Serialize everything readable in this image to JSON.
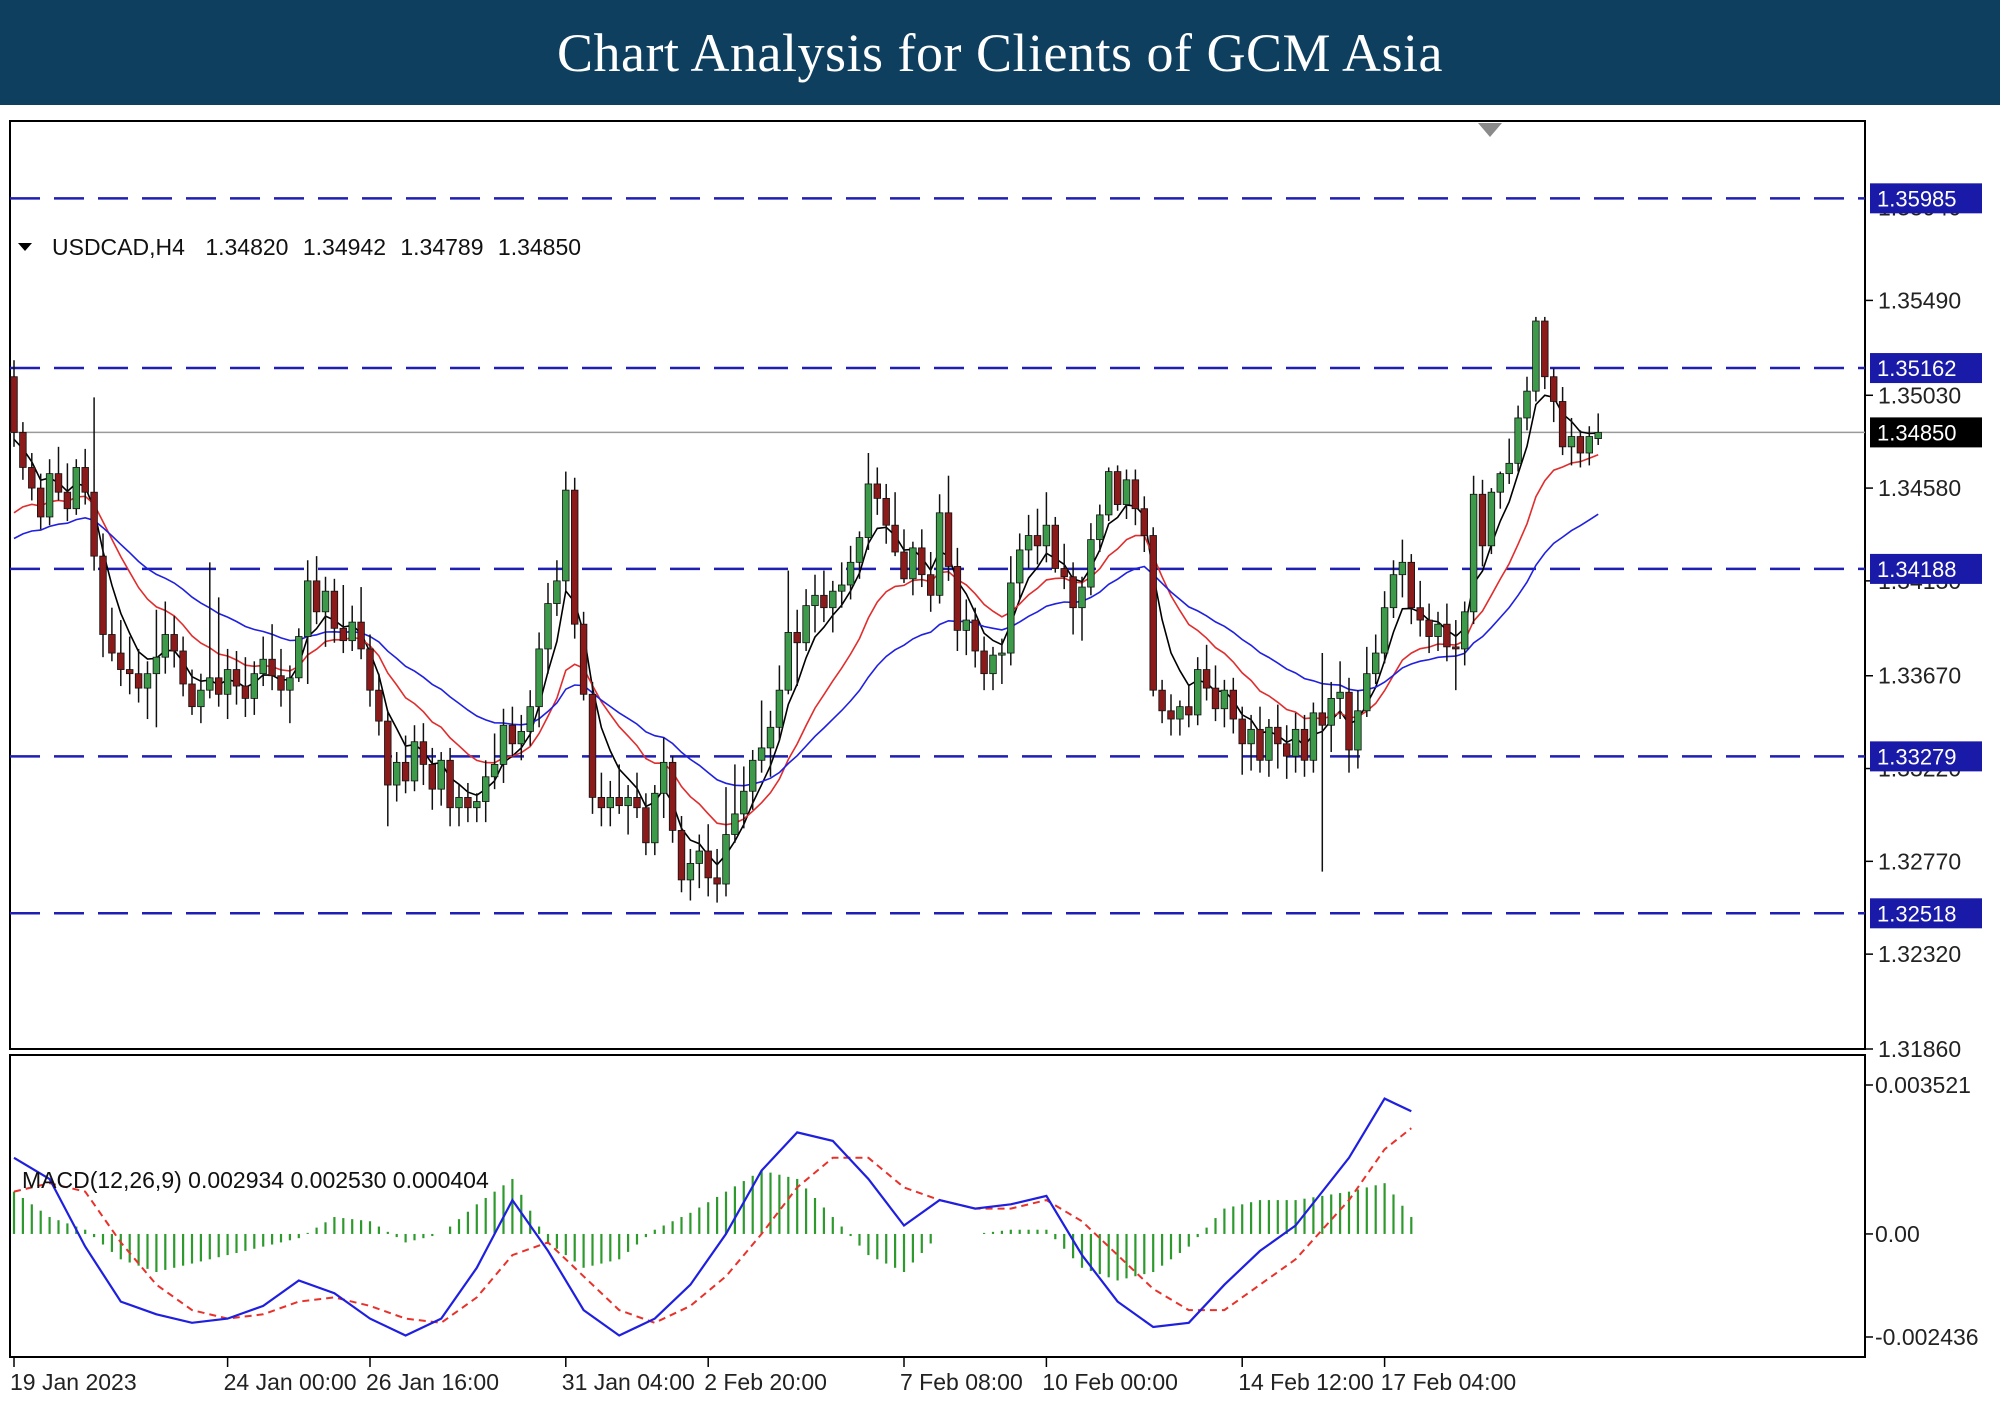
{
  "header": {
    "title": "Chart Analysis for Clients of GCM Asia"
  },
  "chart_data": {
    "type": "candlestick",
    "symbol_info": {
      "symbol": "USDCAD,H4",
      "open": "1.34820",
      "high": "1.34942",
      "low": "1.34789",
      "close": "1.34850"
    },
    "price_axis": {
      "ylim": [
        1.3186,
        1.3636
      ],
      "tick_labels": [
        "1.35490",
        "1.35030",
        "1.34580",
        "1.34130",
        "1.33670",
        "1.33220",
        "1.32770",
        "1.32320",
        "1.31860"
      ],
      "tick_values": [
        1.3549,
        1.3503,
        1.3458,
        1.3413,
        1.3367,
        1.3322,
        1.3277,
        1.3232,
        1.3186
      ],
      "partial_tick_labels": [
        "1.35940"
      ],
      "partial_tick_values": [
        1.3594
      ]
    },
    "x_axis": {
      "tick_labels": [
        "19 Jan 2023",
        "24 Jan 00:00",
        "26 Jan 16:00",
        "31 Jan 04:00",
        "2 Feb 20:00",
        "7 Feb 08:00",
        "10 Feb 00:00",
        "14 Feb 12:00",
        "17 Feb 04:00"
      ],
      "tick_bar_index": [
        0,
        24,
        40,
        62,
        78,
        100,
        116,
        138,
        154
      ]
    },
    "horizontal_levels": {
      "values": [
        1.35985,
        1.35162,
        1.34188,
        1.33279,
        1.32518
      ],
      "labels": [
        "1.35985",
        "1.35162",
        "1.34188",
        "1.33279",
        "1.32518"
      ],
      "style": "dashed",
      "color": "#1f1fb4"
    },
    "current_price": {
      "value": 1.3485,
      "label": "1.34850"
    },
    "candles": [
      [
        1.3512,
        1.352,
        1.3478,
        1.3485
      ],
      [
        1.3485,
        1.349,
        1.3462,
        1.3468
      ],
      [
        1.3468,
        1.3475,
        1.3452,
        1.3458
      ],
      [
        1.3458,
        1.3465,
        1.3438,
        1.3444
      ],
      [
        1.3444,
        1.3472,
        1.344,
        1.3465
      ],
      [
        1.3465,
        1.3478,
        1.3452,
        1.3456
      ],
      [
        1.3456,
        1.347,
        1.3442,
        1.3448
      ],
      [
        1.3448,
        1.3472,
        1.3445,
        1.3468
      ],
      [
        1.3468,
        1.3477,
        1.345,
        1.3456
      ],
      [
        1.3456,
        1.3502,
        1.3418,
        1.3425
      ],
      [
        1.3425,
        1.3436,
        1.3376,
        1.3387
      ],
      [
        1.3387,
        1.34,
        1.3374,
        1.3378
      ],
      [
        1.3378,
        1.3394,
        1.3362,
        1.337
      ],
      [
        1.337,
        1.3386,
        1.3358,
        1.3368
      ],
      [
        1.3368,
        1.338,
        1.3354,
        1.3361
      ],
      [
        1.3361,
        1.3374,
        1.3346,
        1.3368
      ],
      [
        1.3368,
        1.3399,
        1.3342,
        1.3376
      ],
      [
        1.3376,
        1.3403,
        1.3368,
        1.3387
      ],
      [
        1.3387,
        1.3396,
        1.3371,
        1.3379
      ],
      [
        1.3379,
        1.3386,
        1.3357,
        1.3363
      ],
      [
        1.3363,
        1.337,
        1.3348,
        1.3352
      ],
      [
        1.3352,
        1.3368,
        1.3344,
        1.336
      ],
      [
        1.336,
        1.3422,
        1.3356,
        1.3366
      ],
      [
        1.3366,
        1.3405,
        1.3352,
        1.3358
      ],
      [
        1.3358,
        1.338,
        1.3346,
        1.337
      ],
      [
        1.337,
        1.3379,
        1.3353,
        1.3362
      ],
      [
        1.3362,
        1.3376,
        1.3347,
        1.3356
      ],
      [
        1.3356,
        1.3374,
        1.3348,
        1.3368
      ],
      [
        1.3368,
        1.3386,
        1.3362,
        1.3375
      ],
      [
        1.3375,
        1.3392,
        1.336,
        1.3367
      ],
      [
        1.3367,
        1.338,
        1.3352,
        1.336
      ],
      [
        1.336,
        1.3372,
        1.3344,
        1.3366
      ],
      [
        1.3366,
        1.339,
        1.3364,
        1.3386
      ],
      [
        1.3386,
        1.3423,
        1.3363,
        1.3413
      ],
      [
        1.3413,
        1.3425,
        1.3392,
        1.3398
      ],
      [
        1.3398,
        1.3415,
        1.3381,
        1.3408
      ],
      [
        1.3408,
        1.3414,
        1.3383,
        1.339
      ],
      [
        1.339,
        1.3411,
        1.3378,
        1.3384
      ],
      [
        1.3384,
        1.3401,
        1.3379,
        1.3393
      ],
      [
        1.3393,
        1.341,
        1.3375,
        1.338
      ],
      [
        1.338,
        1.3387,
        1.3352,
        1.336
      ],
      [
        1.336,
        1.3368,
        1.3338,
        1.3345
      ],
      [
        1.3345,
        1.335,
        1.3294,
        1.3314
      ],
      [
        1.3314,
        1.333,
        1.3306,
        1.3325
      ],
      [
        1.3325,
        1.3338,
        1.331,
        1.3316
      ],
      [
        1.3316,
        1.3343,
        1.3311,
        1.3335
      ],
      [
        1.3335,
        1.3344,
        1.3314,
        1.3324
      ],
      [
        1.3324,
        1.3332,
        1.3302,
        1.3312
      ],
      [
        1.3312,
        1.333,
        1.3304,
        1.3326
      ],
      [
        1.3326,
        1.3332,
        1.3294,
        1.3303
      ],
      [
        1.3303,
        1.3314,
        1.3294,
        1.3308
      ],
      [
        1.3308,
        1.3315,
        1.3296,
        1.3303
      ],
      [
        1.3303,
        1.331,
        1.3296,
        1.3306
      ],
      [
        1.3306,
        1.3326,
        1.3296,
        1.3318
      ],
      [
        1.3318,
        1.3339,
        1.3312,
        1.3324
      ],
      [
        1.3324,
        1.3351,
        1.3315,
        1.3343
      ],
      [
        1.3343,
        1.3352,
        1.3328,
        1.3334
      ],
      [
        1.3334,
        1.3348,
        1.3326,
        1.334
      ],
      [
        1.334,
        1.336,
        1.3333,
        1.3352
      ],
      [
        1.3352,
        1.3388,
        1.3342,
        1.338
      ],
      [
        1.338,
        1.3412,
        1.3368,
        1.3402
      ],
      [
        1.3402,
        1.3423,
        1.3396,
        1.3413
      ],
      [
        1.3413,
        1.3466,
        1.3408,
        1.3457
      ],
      [
        1.3457,
        1.3463,
        1.3385,
        1.3392
      ],
      [
        1.3392,
        1.3398,
        1.3355,
        1.3358
      ],
      [
        1.3358,
        1.3364,
        1.33,
        1.3308
      ],
      [
        1.3308,
        1.332,
        1.3294,
        1.3303
      ],
      [
        1.3303,
        1.3316,
        1.3294,
        1.3308
      ],
      [
        1.3308,
        1.3324,
        1.33,
        1.3304
      ],
      [
        1.3304,
        1.3314,
        1.329,
        1.3308
      ],
      [
        1.3308,
        1.332,
        1.3298,
        1.3303
      ],
      [
        1.3303,
        1.331,
        1.328,
        1.3286
      ],
      [
        1.3286,
        1.3314,
        1.328,
        1.331
      ],
      [
        1.331,
        1.3337,
        1.3298,
        1.3325
      ],
      [
        1.3325,
        1.3328,
        1.3286,
        1.3292
      ],
      [
        1.3292,
        1.3299,
        1.3262,
        1.3268
      ],
      [
        1.3268,
        1.3283,
        1.3258,
        1.3276
      ],
      [
        1.3276,
        1.329,
        1.3264,
        1.3282
      ],
      [
        1.3282,
        1.3295,
        1.326,
        1.3269
      ],
      [
        1.3269,
        1.3283,
        1.3257,
        1.3266
      ],
      [
        1.3266,
        1.3313,
        1.326,
        1.329
      ],
      [
        1.329,
        1.3324,
        1.3286,
        1.33
      ],
      [
        1.33,
        1.3323,
        1.3293,
        1.3311
      ],
      [
        1.3311,
        1.3331,
        1.3302,
        1.3326
      ],
      [
        1.3326,
        1.3355,
        1.332,
        1.3332
      ],
      [
        1.3332,
        1.335,
        1.3318,
        1.3342
      ],
      [
        1.3342,
        1.3372,
        1.3336,
        1.336
      ],
      [
        1.336,
        1.3418,
        1.3358,
        1.3388
      ],
      [
        1.3388,
        1.3399,
        1.3362,
        1.3383
      ],
      [
        1.3383,
        1.3409,
        1.3379,
        1.3401
      ],
      [
        1.3401,
        1.3416,
        1.3388,
        1.3406
      ],
      [
        1.3406,
        1.3418,
        1.3393,
        1.34
      ],
      [
        1.34,
        1.3413,
        1.3388,
        1.3408
      ],
      [
        1.3408,
        1.3422,
        1.34,
        1.3411
      ],
      [
        1.3411,
        1.343,
        1.3404,
        1.3422
      ],
      [
        1.3422,
        1.3437,
        1.3414,
        1.3434
      ],
      [
        1.3434,
        1.3475,
        1.3428,
        1.346
      ],
      [
        1.346,
        1.3468,
        1.3445,
        1.3453
      ],
      [
        1.3453,
        1.346,
        1.3431,
        1.344
      ],
      [
        1.344,
        1.3456,
        1.3425,
        1.3427
      ],
      [
        1.3427,
        1.3438,
        1.3412,
        1.3414
      ],
      [
        1.3414,
        1.3432,
        1.3406,
        1.3429
      ],
      [
        1.3429,
        1.3438,
        1.341,
        1.3416
      ],
      [
        1.3416,
        1.3427,
        1.3398,
        1.3406
      ],
      [
        1.3406,
        1.3455,
        1.3402,
        1.3446
      ],
      [
        1.3446,
        1.3464,
        1.3413,
        1.342
      ],
      [
        1.342,
        1.3429,
        1.3379,
        1.3389
      ],
      [
        1.3389,
        1.3404,
        1.3377,
        1.3394
      ],
      [
        1.3394,
        1.34,
        1.3371,
        1.3379
      ],
      [
        1.3379,
        1.3386,
        1.336,
        1.3368
      ],
      [
        1.3368,
        1.3381,
        1.336,
        1.3377
      ],
      [
        1.3377,
        1.3385,
        1.3363,
        1.3378
      ],
      [
        1.3378,
        1.3425,
        1.3372,
        1.3412
      ],
      [
        1.3412,
        1.3436,
        1.3404,
        1.3428
      ],
      [
        1.3428,
        1.3445,
        1.3419,
        1.3435
      ],
      [
        1.3435,
        1.3448,
        1.3421,
        1.343
      ],
      [
        1.343,
        1.3456,
        1.3422,
        1.344
      ],
      [
        1.344,
        1.3444,
        1.3417,
        1.3419
      ],
      [
        1.3419,
        1.3431,
        1.3409,
        1.3415
      ],
      [
        1.3415,
        1.3422,
        1.3387,
        1.34
      ],
      [
        1.34,
        1.3415,
        1.3384,
        1.341
      ],
      [
        1.341,
        1.3441,
        1.3406,
        1.3433
      ],
      [
        1.3433,
        1.345,
        1.3427,
        1.3445
      ],
      [
        1.3445,
        1.3468,
        1.3442,
        1.3466
      ],
      [
        1.3466,
        1.3469,
        1.3447,
        1.345
      ],
      [
        1.345,
        1.3467,
        1.3443,
        1.3462
      ],
      [
        1.3462,
        1.3467,
        1.344,
        1.3448
      ],
      [
        1.3448,
        1.3454,
        1.3427,
        1.3435
      ],
      [
        1.3435,
        1.3439,
        1.3357,
        1.336
      ],
      [
        1.336,
        1.3365,
        1.3344,
        1.335
      ],
      [
        1.335,
        1.3358,
        1.3338,
        1.3346
      ],
      [
        1.3346,
        1.3355,
        1.3338,
        1.3352
      ],
      [
        1.3352,
        1.3363,
        1.3342,
        1.3348
      ],
      [
        1.3348,
        1.3376,
        1.3343,
        1.337
      ],
      [
        1.337,
        1.3382,
        1.3355,
        1.3361
      ],
      [
        1.3361,
        1.3372,
        1.3345,
        1.3351
      ],
      [
        1.3351,
        1.3365,
        1.3342,
        1.336
      ],
      [
        1.336,
        1.3366,
        1.3339,
        1.3346
      ],
      [
        1.3346,
        1.3352,
        1.3319,
        1.3334
      ],
      [
        1.3334,
        1.3348,
        1.3321,
        1.3341
      ],
      [
        1.3341,
        1.3352,
        1.332,
        1.3326
      ],
      [
        1.3326,
        1.3346,
        1.3318,
        1.3342
      ],
      [
        1.3342,
        1.3353,
        1.3322,
        1.3334
      ],
      [
        1.3334,
        1.3343,
        1.3317,
        1.3328
      ],
      [
        1.3328,
        1.3349,
        1.332,
        1.3341
      ],
      [
        1.3341,
        1.3348,
        1.3318,
        1.3326
      ],
      [
        1.3326,
        1.3354,
        1.332,
        1.3349
      ],
      [
        1.3349,
        1.3378,
        1.3272,
        1.3343
      ],
      [
        1.3343,
        1.3364,
        1.333,
        1.3356
      ],
      [
        1.3356,
        1.3374,
        1.3346,
        1.3359
      ],
      [
        1.3359,
        1.3366,
        1.332,
        1.3331
      ],
      [
        1.3331,
        1.336,
        1.3322,
        1.335
      ],
      [
        1.335,
        1.3381,
        1.3347,
        1.3368
      ],
      [
        1.3368,
        1.3387,
        1.3363,
        1.3378
      ],
      [
        1.3378,
        1.3408,
        1.3373,
        1.34
      ],
      [
        1.34,
        1.3423,
        1.3395,
        1.3416
      ],
      [
        1.3416,
        1.3433,
        1.3405,
        1.3422
      ],
      [
        1.3422,
        1.3426,
        1.3392,
        1.34
      ],
      [
        1.34,
        1.3413,
        1.3386,
        1.3394
      ],
      [
        1.3394,
        1.3402,
        1.3378,
        1.3386
      ],
      [
        1.3386,
        1.3398,
        1.3379,
        1.3392
      ],
      [
        1.3392,
        1.3402,
        1.3374,
        1.3381
      ],
      [
        1.3381,
        1.3394,
        1.336,
        1.338
      ],
      [
        1.338,
        1.3403,
        1.3372,
        1.3398
      ],
      [
        1.3398,
        1.3464,
        1.3392,
        1.3455
      ],
      [
        1.3455,
        1.3462,
        1.342,
        1.343
      ],
      [
        1.343,
        1.3458,
        1.3426,
        1.3456
      ],
      [
        1.3456,
        1.3466,
        1.3448,
        1.3465
      ],
      [
        1.3465,
        1.3482,
        1.346,
        1.347
      ],
      [
        1.347,
        1.3498,
        1.3466,
        1.3492
      ],
      [
        1.3492,
        1.3512,
        1.3486,
        1.3505
      ],
      [
        1.3505,
        1.3541,
        1.35,
        1.3539
      ],
      [
        1.3539,
        1.3541,
        1.3506,
        1.3512
      ],
      [
        1.3512,
        1.3516,
        1.349,
        1.35
      ],
      [
        1.35,
        1.3507,
        1.3474,
        1.3478
      ],
      [
        1.3478,
        1.3492,
        1.3469,
        1.3483
      ],
      [
        1.3483,
        1.3486,
        1.3468,
        1.3475
      ],
      [
        1.3475,
        1.3488,
        1.3469,
        1.3483
      ],
      [
        1.3482,
        1.34942,
        1.34789,
        1.3485
      ]
    ],
    "macd": {
      "label": "MACD(12,26,9) 0.002934 0.002530 0.000404",
      "ylim": [
        -0.002436,
        0.003521
      ],
      "tick_labels": [
        "0.003521",
        "0.00",
        "-0.002436"
      ],
      "tick_values": [
        0.003521,
        0.0,
        -0.002436
      ],
      "histogram_color": "#2e9a2e",
      "signal_color": "#e8312b",
      "main_color": "#1f1fe0",
      "main_x": [
        0,
        4,
        8,
        12,
        16,
        20,
        24,
        28,
        32,
        36,
        40,
        44,
        48,
        52,
        56,
        60,
        64,
        68,
        72,
        76,
        80,
        84,
        88,
        92,
        96,
        100,
        104,
        108,
        112,
        116,
        120,
        124,
        128,
        132,
        136,
        140,
        144,
        150,
        154,
        157
      ],
      "main": [
        0.0018,
        0.0013,
        -0.0003,
        -0.0016,
        -0.0019,
        -0.0021,
        -0.002,
        -0.0017,
        -0.0011,
        -0.0014,
        -0.002,
        -0.0024,
        -0.002,
        -0.0008,
        0.0008,
        -0.0004,
        -0.0018,
        -0.0024,
        -0.002,
        -0.0012,
        0.0,
        0.0015,
        0.0024,
        0.0022,
        0.0013,
        0.0002,
        0.0008,
        0.0006,
        0.0007,
        0.0009,
        -0.0005,
        -0.0016,
        -0.0022,
        -0.0021,
        -0.0012,
        -0.0004,
        0.0002,
        0.0018,
        0.0032,
        0.0029
      ],
      "signal": [
        0.001,
        0.0012,
        0.001,
        -0.0002,
        -0.0012,
        -0.0018,
        -0.002,
        -0.0019,
        -0.0016,
        -0.0015,
        -0.0017,
        -0.002,
        -0.0021,
        -0.0015,
        -0.0005,
        -0.0002,
        -0.001,
        -0.0018,
        -0.0021,
        -0.0017,
        -0.001,
        0.0,
        0.0011,
        0.0018,
        0.0018,
        0.0011,
        0.0008,
        0.0006,
        0.0006,
        0.0008,
        0.0003,
        -0.0005,
        -0.0013,
        -0.0018,
        -0.0018,
        -0.0012,
        -0.0006,
        0.0008,
        0.002,
        0.0025
      ],
      "histogram": [
        0.001,
        0.0004,
        0.0001,
        -0.0006,
        -0.0009,
        -0.0007,
        -0.0005,
        -0.0003,
        -0.0001,
        0.0004,
        0.0003,
        -0.0002,
        0.0,
        0.0007,
        0.0013,
        -0.0002,
        -0.0008,
        -0.0006,
        0.0001,
        0.0005,
        0.001,
        0.0015,
        0.0013,
        0.0004,
        -0.0005,
        -0.0009,
        0.0,
        0.0,
        0.0001,
        0.0001,
        -0.0008,
        -0.0011,
        -0.0009,
        -0.0003,
        0.0006,
        0.0008,
        0.0008,
        0.001,
        0.0012,
        0.0004
      ]
    },
    "moving_averages": [
      {
        "color": "#000000"
      },
      {
        "color": "#e02d2d"
      },
      {
        "color": "#2020e0"
      }
    ],
    "bull_color": "#3c9a4a",
    "bear_color": "#8b1a1a"
  }
}
